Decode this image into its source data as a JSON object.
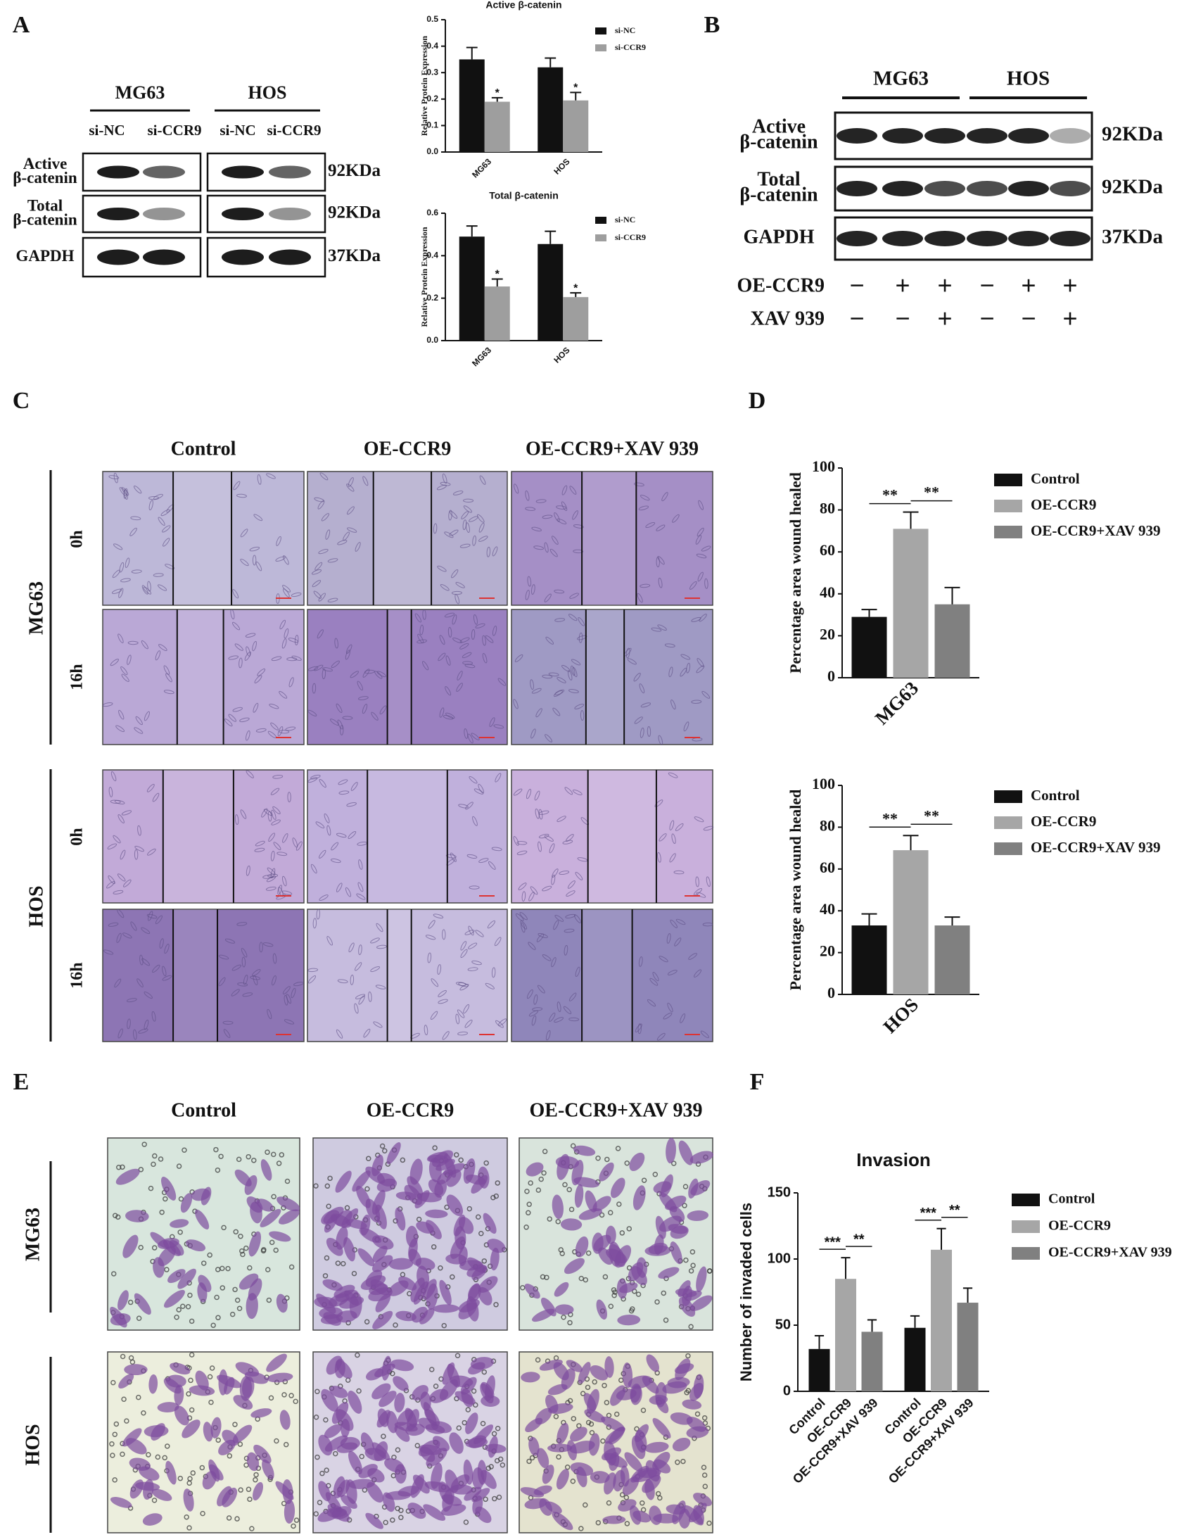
{
  "panels": {
    "A": {
      "letter": "A",
      "blot": {
        "cells": [
          "MG63",
          "HOS"
        ],
        "lanes": [
          "si-NC",
          "si-CCR9",
          "si-NC",
          "si-CCR9"
        ],
        "rows": [
          {
            "label": [
              "Active",
              "β-catenin"
            ],
            "size": "92KDa"
          },
          {
            "label": [
              "Total",
              "β-catenin"
            ],
            "size": "92KDa"
          },
          {
            "label": [
              "GAPDH"
            ],
            "size": "37KDa"
          }
        ]
      }
    },
    "B": {
      "letter": "B",
      "blot": {
        "cells": [
          "MG63",
          "HOS"
        ],
        "rows": [
          {
            "label": [
              "Active",
              "β-catenin"
            ],
            "size": "92KDa"
          },
          {
            "label": [
              "Total",
              "β-catenin"
            ],
            "size": "92KDa"
          },
          {
            "label": [
              "GAPDH"
            ],
            "size": "37KDa"
          }
        ],
        "treatments": [
          {
            "name": "OE-CCR9",
            "signs": [
              "−",
              "+",
              "+",
              "−",
              "+",
              "+"
            ]
          },
          {
            "name": "XAV 939",
            "signs": [
              "−",
              "−",
              "+",
              "−",
              "−",
              "+"
            ]
          }
        ]
      }
    },
    "C": {
      "letter": "C",
      "columns": [
        "Control",
        "OE-CCR9",
        "OE-CCR9+XAV 939"
      ],
      "groups": [
        {
          "name": "MG63",
          "times": [
            "0h",
            "16h"
          ]
        },
        {
          "name": "HOS",
          "times": [
            "0h",
            "16h"
          ]
        }
      ]
    },
    "D": {
      "letter": "D"
    },
    "E": {
      "letter": "E",
      "columns": [
        "Control",
        "OE-CCR9",
        "OE-CCR9+XAV 939"
      ],
      "rows": [
        "MG63",
        "HOS"
      ]
    },
    "F": {
      "letter": "F"
    }
  },
  "chart_data": [
    {
      "type": "bar",
      "title": "Active β-catenin",
      "ylabel": "Relative Protein Expression",
      "categories": [
        "MG63",
        "HOS"
      ],
      "series": [
        {
          "name": "si-NC",
          "color": "#111111",
          "values": [
            0.35,
            0.32
          ],
          "errors": [
            0.045,
            0.035
          ]
        },
        {
          "name": "si-CCR9",
          "color": "#9e9e9e",
          "values": [
            0.19,
            0.195
          ],
          "errors": [
            0.015,
            0.03
          ]
        }
      ],
      "ylim": [
        0,
        0.5
      ],
      "yticks": [
        {
          "value": 0,
          "label": "0.0"
        },
        0.1,
        0.2,
        0.3,
        0.4,
        0.5
      ],
      "annotations": [
        "*",
        "*"
      ]
    },
    {
      "type": "bar",
      "title": "Total β-catenin",
      "ylabel": "Relative Protein Expression",
      "categories": [
        "MG63",
        "HOS"
      ],
      "series": [
        {
          "name": "si-NC",
          "color": "#111111",
          "values": [
            0.49,
            0.455
          ],
          "errors": [
            0.05,
            0.06
          ]
        },
        {
          "name": "si-CCR9",
          "color": "#9e9e9e",
          "values": [
            0.255,
            0.205
          ],
          "errors": [
            0.035,
            0.02
          ]
        }
      ],
      "ylim": [
        0,
        0.6
      ],
      "yticks": [
        {
          "value": 0,
          "label": "0.0"
        },
        0.2,
        0.4,
        0.6
      ],
      "annotations": [
        "*",
        "*"
      ]
    },
    {
      "type": "bar",
      "ylabel": "Percentage area wound healed",
      "categories": [
        "MG63"
      ],
      "series": [
        {
          "name": "Control",
          "color": "#111111",
          "values": [
            29
          ],
          "errors": [
            3.5
          ]
        },
        {
          "name": "OE-CCR9",
          "color": "#a6a6a6",
          "values": [
            71
          ],
          "errors": [
            8
          ]
        },
        {
          "name": "OE-CCR9+XAV 939",
          "color": "#808080",
          "values": [
            35
          ],
          "errors": [
            8
          ]
        }
      ],
      "ylim": [
        0,
        100
      ],
      "yticks": [
        0,
        20,
        40,
        60,
        80,
        100
      ],
      "annotations": [
        "**",
        "**"
      ]
    },
    {
      "type": "bar",
      "ylabel": "Percentage area wound healed",
      "categories": [
        "HOS"
      ],
      "series": [
        {
          "name": "Control",
          "color": "#111111",
          "values": [
            33
          ],
          "errors": [
            5.5
          ]
        },
        {
          "name": "OE-CCR9",
          "color": "#a6a6a6",
          "values": [
            69
          ],
          "errors": [
            7
          ]
        },
        {
          "name": "OE-CCR9+XAV 939",
          "color": "#808080",
          "values": [
            33
          ],
          "errors": [
            4
          ]
        }
      ],
      "ylim": [
        0,
        100
      ],
      "yticks": [
        0,
        20,
        40,
        60,
        80,
        100
      ],
      "annotations": [
        "**",
        "**"
      ]
    },
    {
      "type": "bar",
      "title": "Invasion",
      "ylabel": "Number of invaded cells",
      "categories": [
        null,
        null
      ],
      "series": [
        {
          "name": "Control",
          "color": "#111111",
          "values": [
            32,
            48
          ],
          "errors": [
            10,
            9
          ]
        },
        {
          "name": "OE-CCR9",
          "color": "#a6a6a6",
          "values": [
            85,
            107
          ],
          "errors": [
            16,
            16
          ]
        },
        {
          "name": "OE-CCR9+XAV 939",
          "color": "#808080",
          "values": [
            45,
            67
          ],
          "errors": [
            9,
            11
          ]
        }
      ],
      "ylim": [
        0,
        150
      ],
      "yticks": [
        0,
        50,
        100,
        150
      ],
      "annotations": [
        "***",
        "**",
        "***",
        "**"
      ]
    }
  ]
}
